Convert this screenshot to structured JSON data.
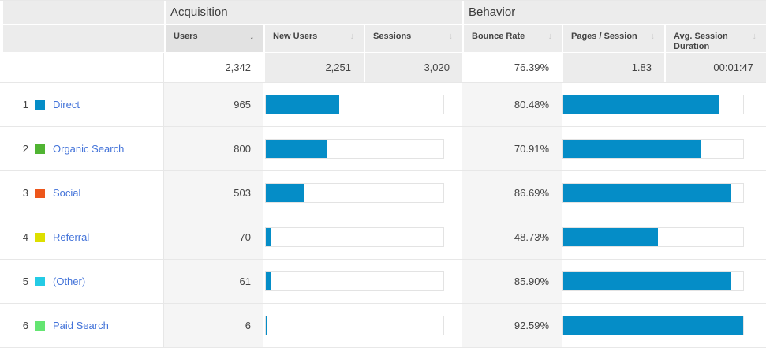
{
  "table": {
    "groups": [
      {
        "label": "Acquisition"
      },
      {
        "label": "Behavior"
      }
    ],
    "columns": [
      {
        "label": "Users",
        "sorted": true
      },
      {
        "label": "New Users",
        "sorted": false
      },
      {
        "label": "Sessions",
        "sorted": false
      },
      {
        "label": "Bounce Rate",
        "sorted": false
      },
      {
        "label": "Pages / Session",
        "sorted": false
      },
      {
        "label": "Avg. Session Duration",
        "sorted": false
      }
    ],
    "summary": {
      "users": "2,342",
      "new_users": "2,251",
      "sessions": "3,020",
      "bounce_rate": "76.39%",
      "pages_per_session": "1.83",
      "avg_session_duration": "00:01:47"
    },
    "users_total": 2342,
    "bounce_max": 92.59,
    "rows": [
      {
        "rank": "1",
        "channel": "Direct",
        "swatch": "#058dc7",
        "users": "965",
        "users_value": 965,
        "bounce_rate": "80.48%",
        "bounce_value": 80.48
      },
      {
        "rank": "2",
        "channel": "Organic Search",
        "swatch": "#50b432",
        "users": "800",
        "users_value": 800,
        "bounce_rate": "70.91%",
        "bounce_value": 70.91
      },
      {
        "rank": "3",
        "channel": "Social",
        "swatch": "#ed561b",
        "users": "503",
        "users_value": 503,
        "bounce_rate": "86.69%",
        "bounce_value": 86.69
      },
      {
        "rank": "4",
        "channel": "Referral",
        "swatch": "#dddf00",
        "users": "70",
        "users_value": 70,
        "bounce_rate": "48.73%",
        "bounce_value": 48.73
      },
      {
        "rank": "5",
        "channel": "(Other)",
        "swatch": "#24cbe5",
        "users": "61",
        "users_value": 61,
        "bounce_rate": "85.90%",
        "bounce_value": 85.9
      },
      {
        "rank": "6",
        "channel": "Paid Search",
        "swatch": "#64e572",
        "users": "6",
        "users_value": 6,
        "bounce_rate": "92.59%",
        "bounce_value": 92.59
      }
    ]
  },
  "icons": {
    "sort_desc": "↓"
  },
  "colors": {
    "bar_fill": "#058dc7",
    "link": "#4373d9",
    "header_bg": "#ececec",
    "sorted_header_bg": "#e2e2e2",
    "value_cell_bg": "#f5f5f5"
  },
  "chart_data": {
    "type": "table",
    "title": "Acquisition and Behavior by Channel",
    "column_groups": [
      "Acquisition",
      "Behavior"
    ],
    "columns": [
      "Users",
      "New Users",
      "Sessions",
      "Bounce Rate",
      "Pages / Session",
      "Avg. Session Duration"
    ],
    "totals": [
      "2,342",
      "2,251",
      "3,020",
      "76.39%",
      "1.83",
      "00:01:47"
    ],
    "categories": [
      "Direct",
      "Organic Search",
      "Social",
      "Referral",
      "(Other)",
      "Paid Search"
    ],
    "series": [
      {
        "name": "Users",
        "values": [
          965,
          800,
          503,
          70,
          61,
          6
        ]
      },
      {
        "name": "Bounce Rate (%)",
        "values": [
          80.48,
          70.91,
          86.69,
          48.73,
          85.9,
          92.59
        ]
      }
    ],
    "layout_hints": {
      "users_bars_scaled_to": "total users 2342 = full width",
      "bounce_bars_scaled_to": "max bounce rate 92.59% = full width",
      "sorted_by": "Users descending"
    }
  }
}
